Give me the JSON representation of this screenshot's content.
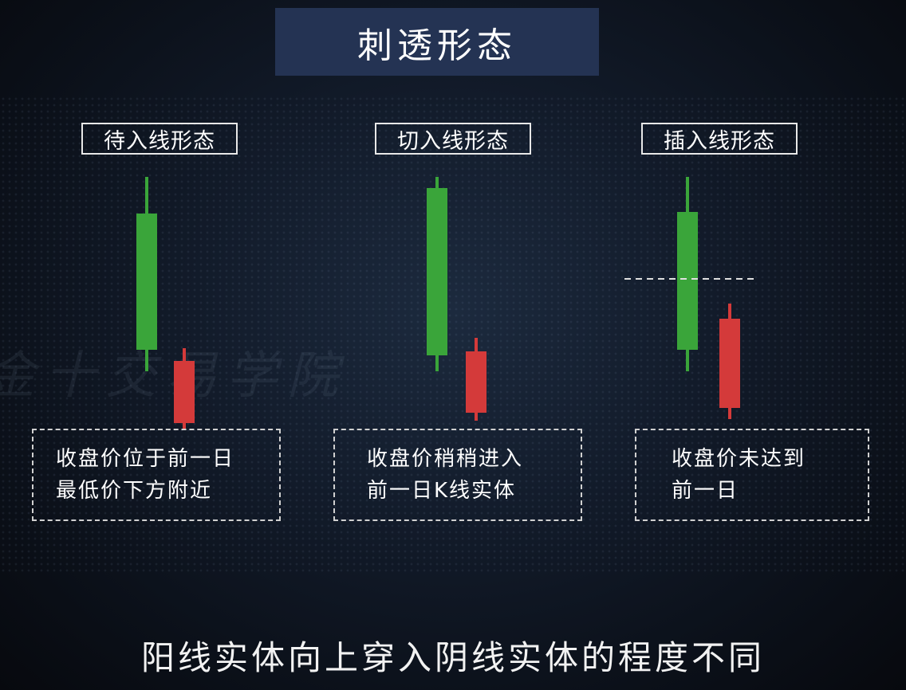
{
  "title": "刺透形态",
  "colors": {
    "bull": "#3aa53a",
    "bear": "#d43a3a",
    "guide": "#e0e0e0"
  },
  "patterns": [
    {
      "label": "待入线形态",
      "note_line1": "收盘价位于前一日",
      "note_line2": "最低价下方附近"
    },
    {
      "label": "切入线形态",
      "note_line1": "收盘价稍稍进入",
      "note_line2": "前一日K线实体"
    },
    {
      "label": "插入线形态",
      "note_line1": "收盘价未达到",
      "note_line2": "前一日"
    }
  ],
  "caption": "阳线实体向上穿入阴线实体的程度不同",
  "watermark": "金十交易学院"
}
